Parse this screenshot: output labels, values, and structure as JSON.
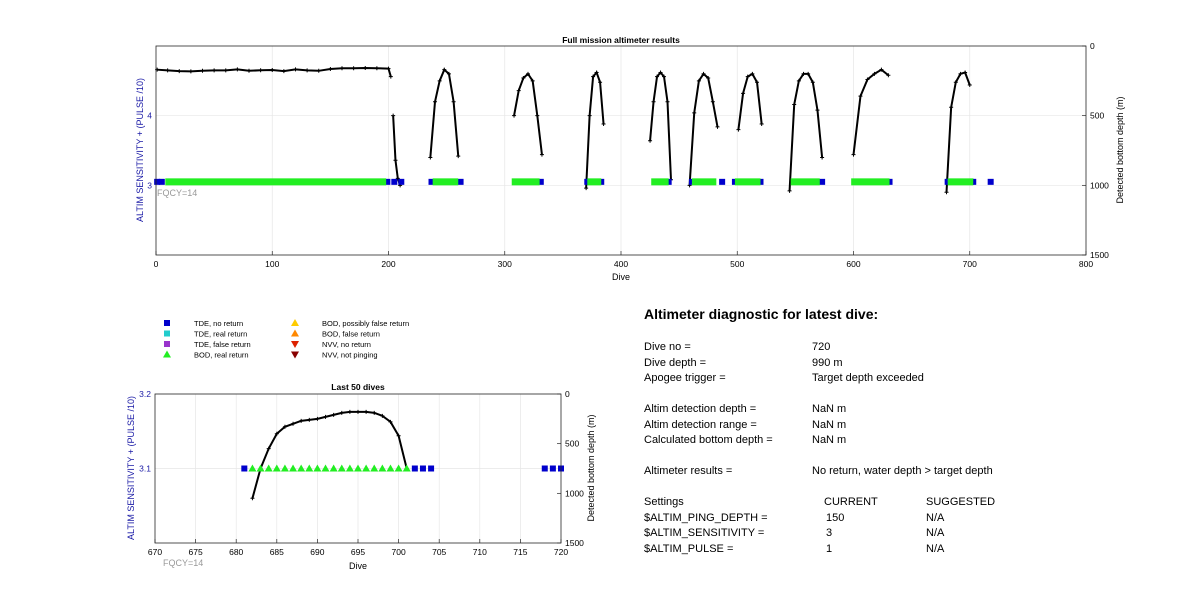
{
  "chart_data": [
    {
      "type": "scatter",
      "title": "Full mission altimeter results",
      "xlabel": "Dive",
      "ylabel": "ALTIM SENSITIVITY + (PULSE /10)",
      "y2label": "Detected bottom depth (m)",
      "xlim": [
        0,
        800
      ],
      "ylim": [
        2,
        5
      ],
      "y2lim": [
        1500,
        0
      ],
      "xticks": [
        0,
        100,
        200,
        300,
        400,
        500,
        600,
        700,
        800
      ],
      "yticks": [
        3,
        4
      ],
      "y2ticks": [
        0,
        500,
        1000,
        1500
      ],
      "grid": true,
      "annotation": "FQCY=14",
      "series": [
        {
          "name": "Detected bottom depth",
          "color": "#000000",
          "segments": [
            {
              "x": [
                1,
                10,
                20,
                30,
                40,
                50,
                60,
                70,
                80,
                90,
                100,
                110,
                120,
                130,
                140,
                150,
                160,
                170,
                180,
                190,
                200,
                202
              ],
              "y": [
                170,
                175,
                180,
                182,
                178,
                175,
                175,
                168,
                178,
                174,
                172,
                180,
                168,
                175,
                178,
                165,
                160,
                160,
                158,
                160,
                162,
                220
              ]
            },
            {
              "x": [
                204,
                206,
                208,
                210
              ],
              "y": [
                500,
                820,
                950,
                1000
              ]
            },
            {
              "x": [
                236,
                240,
                244,
                248,
                252,
                256,
                260
              ],
              "y": [
                800,
                400,
                250,
                170,
                200,
                400,
                790
              ]
            },
            {
              "x": [
                308,
                312,
                316,
                320,
                324,
                328,
                332
              ],
              "y": [
                500,
                320,
                230,
                200,
                250,
                500,
                780
              ]
            },
            {
              "x": [
                370,
                373,
                376,
                379,
                382,
                385
              ],
              "y": [
                1020,
                500,
                220,
                190,
                260,
                560
              ]
            },
            {
              "x": [
                425,
                428,
                431,
                434,
                437,
                440,
                443
              ],
              "y": [
                680,
                400,
                220,
                190,
                220,
                400,
                960
              ]
            },
            {
              "x": [
                459,
                463,
                467,
                471,
                475,
                479,
                483
              ],
              "y": [
                1000,
                480,
                250,
                200,
                230,
                400,
                580
              ]
            },
            {
              "x": [
                501,
                505,
                509,
                513,
                517,
                521
              ],
              "y": [
                600,
                340,
                220,
                200,
                260,
                560
              ]
            },
            {
              "x": [
                545,
                549,
                553,
                557,
                561,
                565,
                569,
                573
              ],
              "y": [
                1040,
                420,
                250,
                200,
                200,
                260,
                460,
                800
              ]
            },
            {
              "x": [
                600,
                606,
                612,
                618,
                624,
                630
              ],
              "y": [
                780,
                360,
                240,
                200,
                170,
                210
              ]
            },
            {
              "x": [
                680,
                684,
                688,
                692,
                696,
                700
              ],
              "y": [
                1050,
                440,
                260,
                200,
                190,
                280
              ]
            }
          ]
        },
        {
          "name": "TDE, no return",
          "color": "#0000cc",
          "points": [
            [
              1,
              3.05
            ],
            [
              5,
              3.05
            ],
            [
              199,
              3.05
            ],
            [
              205,
              3.05
            ],
            [
              211,
              3.05
            ],
            [
              237,
              3.05
            ],
            [
              262,
              3.05
            ],
            [
              331,
              3.05
            ],
            [
              371,
              3.05
            ],
            [
              383,
              3.05
            ],
            [
              430,
              3.05
            ],
            [
              441,
              3.05
            ],
            [
              461,
              3.05
            ],
            [
              487,
              3.05
            ],
            [
              498,
              3.05
            ],
            [
              520,
              3.05
            ],
            [
              555,
              3.05
            ],
            [
              573,
              3.05
            ],
            [
              601,
              3.05
            ],
            [
              631,
              3.05
            ],
            [
              681,
              3.05
            ],
            [
              701,
              3.05
            ],
            [
              703,
              3.05
            ],
            [
              718,
              3.05
            ]
          ]
        },
        {
          "name": "BOD, real return",
          "color": "#22ee22",
          "ranges": [
            [
              8,
              198
            ],
            [
              238,
              260
            ],
            [
              306,
              330
            ],
            [
              371,
              383
            ],
            [
              426,
              441
            ],
            [
              461,
              482
            ],
            [
              498,
              520
            ],
            [
              546,
              571
            ],
            [
              598,
              631
            ],
            [
              681,
              703
            ]
          ]
        }
      ]
    },
    {
      "type": "scatter",
      "title": "Last 50 dives",
      "xlabel": "Dive",
      "ylabel": "ALTIM SENSITIVITY + (PULSE /10)",
      "y2label": "Detected bottom depth (m)",
      "xlim": [
        670,
        720
      ],
      "ylim": [
        3.0,
        3.2
      ],
      "y2lim": [
        1500,
        0
      ],
      "xticks": [
        670,
        675,
        680,
        685,
        690,
        695,
        700,
        705,
        710,
        715,
        720
      ],
      "yticks": [
        3.1,
        3.2
      ],
      "y2ticks": [
        0,
        500,
        1000,
        1500
      ],
      "grid": true,
      "annotation": "FQCY=14",
      "series": [
        {
          "name": "Detected bottom depth",
          "color": "#000000",
          "x": [
            682,
            683,
            684,
            685,
            686,
            687,
            688,
            689,
            690,
            691,
            692,
            693,
            694,
            695,
            696,
            697,
            698,
            699,
            700,
            701
          ],
          "y": [
            1050,
            750,
            550,
            400,
            330,
            300,
            270,
            260,
            250,
            230,
            210,
            190,
            180,
            180,
            180,
            190,
            220,
            280,
            420,
            750
          ]
        },
        {
          "name": "TDE, no return",
          "color": "#0000cc",
          "x": [
            681,
            702,
            703,
            704,
            718,
            719,
            720
          ],
          "value": 3.1
        },
        {
          "name": "BOD, real return",
          "color": "#22ee22",
          "x": [
            682,
            683,
            684,
            685,
            686,
            687,
            688,
            689,
            690,
            691,
            692,
            693,
            694,
            695,
            696,
            697,
            698,
            699,
            700,
            701
          ],
          "value": 3.1
        }
      ]
    }
  ],
  "legend": [
    {
      "label": "TDE, no return",
      "color": "#0000cc",
      "marker": "square"
    },
    {
      "label": "TDE, real return",
      "color": "#22cccc",
      "marker": "square"
    },
    {
      "label": "TDE, false return",
      "color": "#9933cc",
      "marker": "square"
    },
    {
      "label": "BOD, real return",
      "color": "#22ee22",
      "marker": "triangle-up"
    },
    {
      "label": "BOD, possibly false return",
      "color": "#ffcc00",
      "marker": "triangle-up"
    },
    {
      "label": "BOD, false return",
      "color": "#ff8800",
      "marker": "triangle-up"
    },
    {
      "label": "NVV, no return",
      "color": "#dd2200",
      "marker": "triangle-down"
    },
    {
      "label": "NVV, not pinging",
      "color": "#880000",
      "marker": "triangle-down"
    }
  ],
  "diagnostic": {
    "title": "Altimeter diagnostic for latest dive:",
    "dive_no_label": "Dive no =",
    "dive_no": "720",
    "dive_depth_label": "Dive depth =",
    "dive_depth": "990 m",
    "apogee_label": "Apogee trigger =",
    "apogee": "Target depth exceeded",
    "det_depth_label": "Altim detection depth =",
    "det_depth": "NaN m",
    "det_range_label": "Altim detection range =",
    "det_range": "NaN m",
    "calc_bottom_label": "Calculated bottom depth =",
    "calc_bottom": "NaN m",
    "results_label": "Altimeter results =",
    "results": "No return, water depth > target depth",
    "settings_label": "Settings",
    "current_label": "CURRENT",
    "suggested_label": "SUGGESTED",
    "ping_depth_label": "$ALTIM_PING_DEPTH =",
    "ping_depth_current": "150",
    "ping_depth_suggested": "N/A",
    "sensitivity_label": "$ALTIM_SENSITIVITY =",
    "sensitivity_current": "3",
    "sensitivity_suggested": "N/A",
    "pulse_label": "$ALTIM_PULSE =",
    "pulse_current": "1",
    "pulse_suggested": "N/A"
  }
}
